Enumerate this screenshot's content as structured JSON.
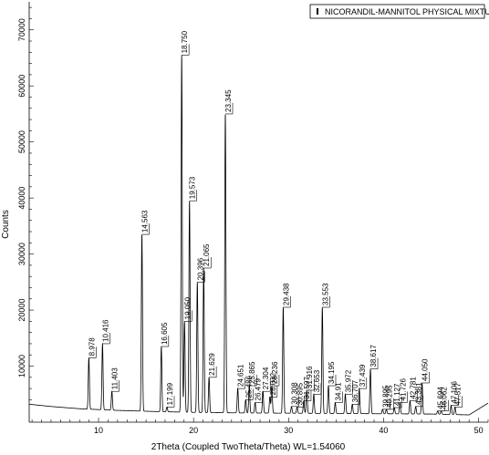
{
  "chart_data": {
    "type": "line",
    "xlabel": "2Theta (Coupled TwoTheta/Theta) WL=1.54060",
    "ylabel": "Counts",
    "xlim": [
      2.7,
      51.0
    ],
    "ylim": [
      0,
      75000
    ],
    "x_ticks": [
      10,
      20,
      30,
      40,
      50
    ],
    "y_ticks": [
      0,
      10000,
      20000,
      30000,
      40000,
      50000,
      60000,
      70000
    ],
    "legend": {
      "position": "top-right",
      "label": "NICORANDIL-MANNITOL PHYSICAL MIXTURE.raw"
    },
    "series": [
      {
        "baseline": [
          [
            2.7,
            3200
          ],
          [
            5,
            2800
          ],
          [
            8,
            2400
          ],
          [
            12,
            2100
          ],
          [
            16,
            1900
          ],
          [
            20,
            1750
          ],
          [
            25,
            1650
          ],
          [
            30,
            1600
          ],
          [
            35,
            1550
          ],
          [
            40,
            1500
          ],
          [
            45,
            1450
          ],
          [
            49,
            1300
          ],
          [
            51,
            3400
          ]
        ],
        "peaks": [
          {
            "x": 8.978,
            "y": 11500,
            "label": "8.978"
          },
          {
            "x": 10.416,
            "y": 14000,
            "label": "10.416"
          },
          {
            "x": 11.403,
            "y": 5500,
            "label": "11.403"
          },
          {
            "x": 14.563,
            "y": 33500,
            "label": "14.563"
          },
          {
            "x": 16.605,
            "y": 13500,
            "label": "16.605"
          },
          {
            "x": 17.199,
            "y": 2700,
            "label": "17.199"
          },
          {
            "x": 18.75,
            "y": 65500,
            "label": "18.750"
          },
          {
            "x": 19.05,
            "y": 18000,
            "label": "19.050"
          },
          {
            "x": 19.573,
            "y": 39500,
            "label": "19.573"
          },
          {
            "x": 20.396,
            "y": 25000,
            "label": "20.396"
          },
          {
            "x": 21.065,
            "y": 27500,
            "label": "21.065"
          },
          {
            "x": 21.629,
            "y": 8000,
            "label": "21.629"
          },
          {
            "x": 23.345,
            "y": 55000,
            "label": "23.345"
          },
          {
            "x": 24.651,
            "y": 6000,
            "label": "24.651"
          },
          {
            "x": 25.486,
            "y": 4000,
            "label": "25.486"
          },
          {
            "x": 25.865,
            "y": 6500,
            "label": "25.865"
          },
          {
            "x": 26.479,
            "y": 3500,
            "label": "26.479"
          },
          {
            "x": 27.304,
            "y": 5500,
            "label": "27.304"
          },
          {
            "x": 28.032,
            "y": 4500,
            "label": "28.032"
          },
          {
            "x": 28.236,
            "y": 6500,
            "label": "28.236"
          },
          {
            "x": 29.438,
            "y": 20500,
            "label": "29.438"
          },
          {
            "x": 30.308,
            "y": 2800,
            "label": "30.308"
          },
          {
            "x": 30.895,
            "y": 2700,
            "label": "30.895"
          },
          {
            "x": 31.597,
            "y": 3800,
            "label": "31.597"
          },
          {
            "x": 31.916,
            "y": 5700,
            "label": "31.916"
          },
          {
            "x": 32.653,
            "y": 5000,
            "label": "32.653"
          },
          {
            "x": 33.553,
            "y": 20500,
            "label": "33.553"
          },
          {
            "x": 34.195,
            "y": 6500,
            "label": "34.195"
          },
          {
            "x": 34.91,
            "y": 3500,
            "label": "34.91"
          },
          {
            "x": 35.972,
            "y": 5000,
            "label": "35.972"
          },
          {
            "x": 36.707,
            "y": 3200,
            "label": "36.707"
          },
          {
            "x": 37.439,
            "y": 6000,
            "label": "37.439"
          },
          {
            "x": 38.617,
            "y": 9500,
            "label": "38.617"
          },
          {
            "x": 39.895,
            "y": 2300,
            "label": "39.895"
          },
          {
            "x": 40.295,
            "y": 2300,
            "label": "40.295"
          },
          {
            "x": 41.127,
            "y": 2600,
            "label": "41.127"
          },
          {
            "x": 41.726,
            "y": 3500,
            "label": "41.726"
          },
          {
            "x": 42.781,
            "y": 3800,
            "label": "42.781"
          },
          {
            "x": 43.381,
            "y": 2800,
            "label": "43.381"
          },
          {
            "x": 44.05,
            "y": 7000,
            "label": "44.050"
          },
          {
            "x": 45.694,
            "y": 2000,
            "label": "45.694"
          },
          {
            "x": 46.062,
            "y": 2000,
            "label": "46.062"
          },
          {
            "x": 47.106,
            "y": 3000,
            "label": "47.106"
          },
          {
            "x": 47.517,
            "y": 2700,
            "label": "47.517"
          }
        ]
      }
    ]
  }
}
